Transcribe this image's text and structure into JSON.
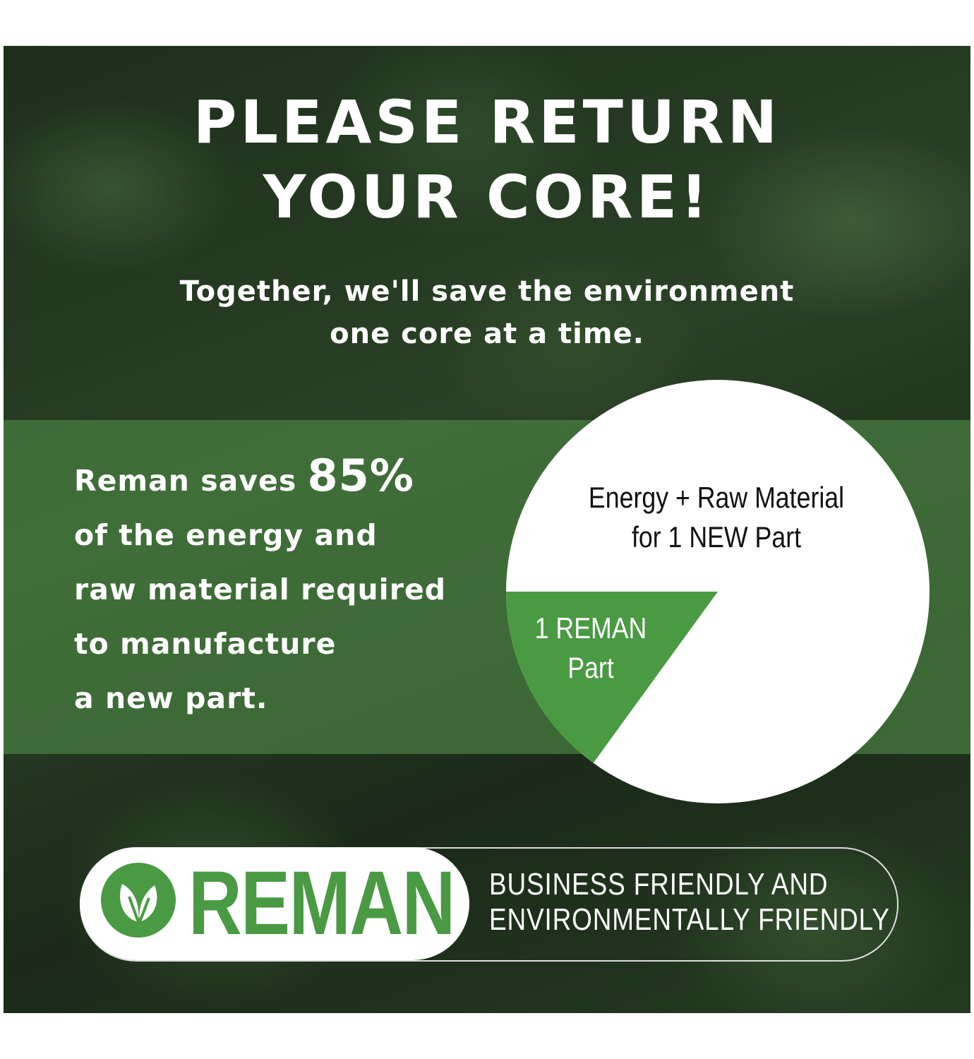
{
  "headline": {
    "line1": "PLEASE RETURN",
    "line2": "YOUR CORE!"
  },
  "subheadline": {
    "line1": "Together, we'll save the environment",
    "line2": "one core at a time."
  },
  "stat": {
    "prefix": "Reman saves ",
    "value": "85%",
    "lines": [
      "of the energy and",
      "raw material required",
      "to manufacture",
      "a new part."
    ]
  },
  "pie": {
    "whole_label": {
      "line1": "Energy + Raw Material",
      "line2": "for 1 NEW Part"
    },
    "slice_label": {
      "line1": "1 REMAN",
      "line2": "Part"
    },
    "slice_fraction": 0.15,
    "colors": {
      "whole": "#ffffff",
      "slice": "#4a9a44"
    }
  },
  "logo": {
    "text": "REMAN",
    "icon": "leaf-icon",
    "color": "#4a9a44"
  },
  "tagline": {
    "line1": "BUSINESS FRIENDLY AND",
    "line2": "ENVIRONMENTALLY FRIENDLY"
  }
}
